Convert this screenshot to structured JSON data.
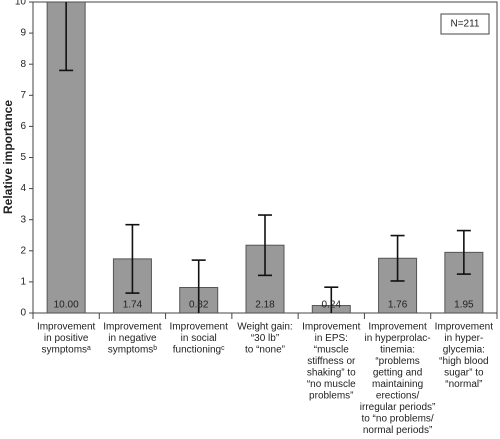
{
  "chart_data": {
    "type": "bar",
    "y_label": "Relative importance",
    "annotation": "N=211",
    "categories": [
      [
        "Improvement",
        "in positive",
        "symptomsᵃ"
      ],
      [
        "Improvement",
        "in negative",
        "symptomsᵇ"
      ],
      [
        "Improvement",
        "in social",
        "functioningᶜ"
      ],
      [
        "Weight gain:",
        "“30 lb”",
        "to “none”"
      ],
      [
        "Improvement",
        "in EPS:",
        "“muscle",
        "stiffness or",
        "shaking” to",
        "“no muscle",
        "problems”"
      ],
      [
        "Improvement",
        "in hyperprolac-",
        "tinemia:",
        "“problems",
        "getting and",
        "maintaining",
        "erections/",
        "irregular periods”",
        "to “no problems/",
        "normal periods”"
      ],
      [
        "Improvement",
        "in hyper-",
        "glycemia:",
        "“high blood",
        "sugar” to",
        "“normal”"
      ]
    ],
    "values": [
      10,
      1.74,
      0.82,
      2.18,
      0.24,
      1.76,
      1.95
    ],
    "value_labels": [
      "10.00",
      "1.74",
      "0.82",
      "2.18",
      "0.24",
      "1.76",
      "1.95"
    ],
    "errors": [
      2.2,
      1.1,
      0.88,
      0.97,
      0.59,
      0.73,
      0.7
    ],
    "color": "#999999",
    "ylim": [
      0,
      10
    ],
    "yticks": [
      0,
      1,
      2,
      3,
      4,
      5,
      6,
      7,
      8,
      9,
      10
    ]
  }
}
